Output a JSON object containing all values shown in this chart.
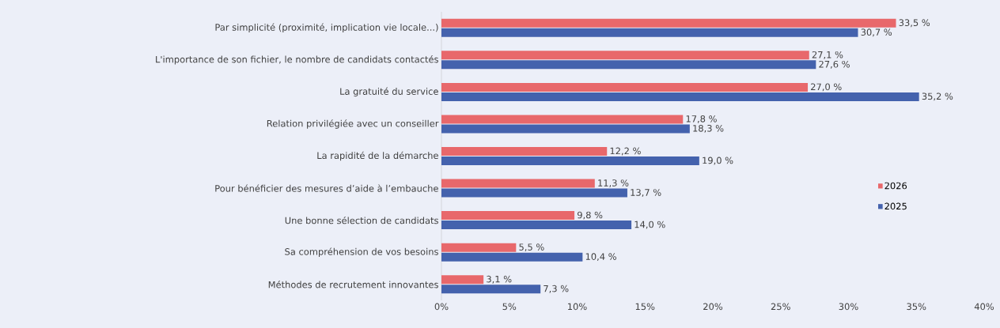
{
  "chart_data": {
    "type": "bar",
    "orientation": "horizontal",
    "categories": [
      "Par simplicité (proximité, implication vie locale...)",
      "L'importance de son fichier, le nombre de candidats contactés",
      "La gratuité du service",
      "Relation privilégiée avec un conseiller",
      "La rapidité de la démarche",
      "Pour bénéficier des mesures d’aide à l’embauche",
      "Une bonne sélection de candidats",
      "Sa compréhension de vos besoins",
      "Méthodes de recrutement innovantes"
    ],
    "series": [
      {
        "name": "2026",
        "color": "#e8686b",
        "values": [
          33.5,
          27.1,
          27.0,
          17.8,
          12.2,
          11.3,
          9.8,
          5.5,
          3.1
        ],
        "value_labels": [
          "33,5 %",
          "27,1 %",
          "27,0 %",
          "17,8 %",
          "12,2 %",
          "11,3 %",
          "9,8 %",
          "5,5 %",
          "3,1 %"
        ]
      },
      {
        "name": "2025",
        "color": "#4462ad",
        "values": [
          30.7,
          27.6,
          35.2,
          18.3,
          19.0,
          13.7,
          14.0,
          10.4,
          7.3
        ],
        "value_labels": [
          "30,7 %",
          "27,6 %",
          "35,2 %",
          "18,3 %",
          "19,0 %",
          "13,7 %",
          "14,0 %",
          "10,4 %",
          "7,3 %"
        ]
      }
    ],
    "xlim": [
      0,
      40
    ],
    "xticks": [
      {
        "value": 0,
        "label": "0%"
      },
      {
        "value": 5,
        "label": "5%"
      },
      {
        "value": 10,
        "label": "10%"
      },
      {
        "value": 15,
        "label": "15%"
      },
      {
        "value": 20,
        "label": "20%"
      },
      {
        "value": 25,
        "label": "25%"
      },
      {
        "value": 30,
        "label": "30%"
      },
      {
        "value": 35,
        "label": "35%"
      },
      {
        "value": 40,
        "label": "40%"
      }
    ],
    "legend": "right"
  }
}
